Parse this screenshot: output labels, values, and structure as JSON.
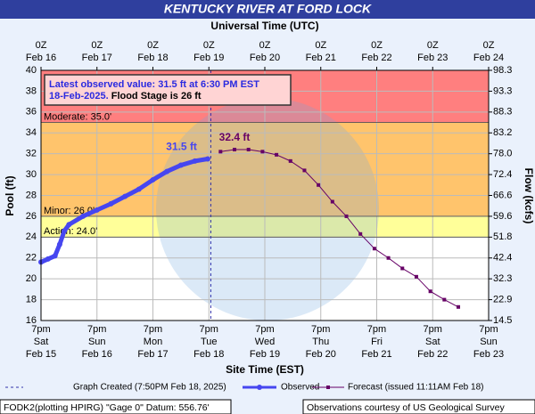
{
  "chart_data": {
    "type": "hydrograph",
    "title": "KENTUCKY RIVER AT FORD LOCK",
    "top_axis_label": "Universal Time (UTC)",
    "xlabel": "Site Time (EST)",
    "ylabel": "Pool (ft)",
    "y2label": "Flow (kcfs)",
    "xlim": [
      "2025-02-15T19:00-05:00",
      "2025-02-23T19:00-05:00"
    ],
    "xticks": [
      {
        "value": "2025-02-15T19:00-05:00",
        "label": [
          "7pm",
          "Sat",
          "Feb 15"
        ]
      },
      {
        "value": "2025-02-16T19:00-05:00",
        "label": [
          "7pm",
          "Sun",
          "Feb 16"
        ]
      },
      {
        "value": "2025-02-17T19:00-05:00",
        "label": [
          "7pm",
          "Mon",
          "Feb 17"
        ]
      },
      {
        "value": "2025-02-18T19:00-05:00",
        "label": [
          "7pm",
          "Tue",
          "Feb 18"
        ]
      },
      {
        "value": "2025-02-19T19:00-05:00",
        "label": [
          "7pm",
          "Wed",
          "Feb 19"
        ]
      },
      {
        "value": "2025-02-20T19:00-05:00",
        "label": [
          "7pm",
          "Thu",
          "Feb 20"
        ]
      },
      {
        "value": "2025-02-21T19:00-05:00",
        "label": [
          "7pm",
          "Fri",
          "Feb 21"
        ]
      },
      {
        "value": "2025-02-22T19:00-05:00",
        "label": [
          "7pm",
          "Sat",
          "Feb 22"
        ]
      },
      {
        "value": "2025-02-23T19:00-05:00",
        "label": [
          "7pm",
          "Sun",
          "Feb 23"
        ]
      }
    ],
    "x2ticks": [
      {
        "value": "2025-02-16T00:00Z",
        "label": [
          "0Z",
          "Feb 16"
        ]
      },
      {
        "value": "2025-02-17T00:00Z",
        "label": [
          "0Z",
          "Feb 17"
        ]
      },
      {
        "value": "2025-02-18T00:00Z",
        "label": [
          "0Z",
          "Feb 18"
        ]
      },
      {
        "value": "2025-02-19T00:00Z",
        "label": [
          "0Z",
          "Feb 19"
        ]
      },
      {
        "value": "2025-02-20T00:00Z",
        "label": [
          "0Z",
          "Feb 20"
        ]
      },
      {
        "value": "2025-02-21T00:00Z",
        "label": [
          "0Z",
          "Feb 21"
        ]
      },
      {
        "value": "2025-02-22T00:00Z",
        "label": [
          "0Z",
          "Feb 22"
        ]
      },
      {
        "value": "2025-02-23T00:00Z",
        "label": [
          "0Z",
          "Feb 23"
        ]
      },
      {
        "value": "2025-02-24T00:00Z",
        "label": [
          "0Z",
          "Feb 24"
        ]
      }
    ],
    "ylim": [
      16,
      40
    ],
    "yticks": [
      16,
      18,
      20,
      22,
      24,
      26,
      28,
      30,
      32,
      34,
      36,
      38,
      40
    ],
    "y2ticks": [
      14.5,
      22.9,
      32.3,
      42.4,
      51.8,
      59.6,
      66.6,
      72.4,
      {
        "value": 78,
        "label": "78.0"
      },
      83.2,
      88.3,
      93.3,
      98.3
    ],
    "grid": true,
    "thresholds": [
      {
        "label": "Action: 24.0'",
        "value": 24,
        "color": "#ffff99"
      },
      {
        "label": "Minor: 26.0'",
        "value": 26,
        "color": "#ffc46c"
      },
      {
        "label": "Moderate: 35.0'",
        "value": 35,
        "color": "#ff7f7f"
      }
    ],
    "created": {
      "name": "Graph Created (7:50PM Feb 18, 2025)",
      "x": "2025-02-18T19:50-05:00",
      "color": "#3333aa"
    },
    "series": [
      {
        "name": "Observed",
        "color": "#4646f0",
        "x": [
          "2025-02-15T19:00-05:00",
          "2025-02-15T22:00-05:00",
          "2025-02-16T01:00-05:00",
          "2025-02-16T03:00-05:00",
          "2025-02-16T05:00-05:00",
          "2025-02-16T07:00-05:00",
          "2025-02-16T13:00-05:00",
          "2025-02-16T19:00-05:00",
          "2025-02-17T01:00-05:00",
          "2025-02-17T07:00-05:00",
          "2025-02-17T13:00-05:00",
          "2025-02-17T19:00-05:00",
          "2025-02-18T01:00-05:00",
          "2025-02-18T07:00-05:00",
          "2025-02-18T13:00-05:00",
          "2025-02-18T18:30-05:00"
        ],
        "values": [
          21.6,
          21.9,
          22.2,
          23.3,
          24.6,
          25.2,
          26.0,
          26.6,
          27.2,
          27.9,
          28.6,
          29.5,
          30.3,
          30.9,
          31.3,
          31.5
        ],
        "value_labels": [
          null,
          null,
          null,
          null,
          null,
          null,
          null,
          null,
          null,
          null,
          null,
          null,
          null,
          null,
          null,
          "31.5 ft"
        ]
      },
      {
        "name": "Forecast (issued 11:11AM Feb 18)",
        "color": "#660066",
        "x": [
          "2025-02-19T00:00-05:00",
          "2025-02-19T06:00-05:00",
          "2025-02-19T12:00-05:00",
          "2025-02-19T18:00-05:00",
          "2025-02-20T00:00-05:00",
          "2025-02-20T06:00-05:00",
          "2025-02-20T12:00-05:00",
          "2025-02-20T18:00-05:00",
          "2025-02-21T00:00-05:00",
          "2025-02-21T06:00-05:00",
          "2025-02-21T12:00-05:00",
          "2025-02-21T18:00-05:00",
          "2025-02-22T00:00-05:00",
          "2025-02-22T06:00-05:00",
          "2025-02-22T12:00-05:00",
          "2025-02-22T18:00-05:00",
          "2025-02-23T00:00-05:00",
          "2025-02-23T06:00-05:00"
        ],
        "values": [
          32.2,
          32.4,
          32.4,
          32.2,
          31.9,
          31.3,
          30.4,
          29.0,
          27.4,
          26.0,
          24.3,
          22.9,
          22.0,
          21.0,
          20.2,
          18.8,
          18.0,
          17.3
        ],
        "value_labels": [
          null,
          "32.4 ft",
          null,
          null,
          null,
          null,
          null,
          null,
          null,
          null,
          null,
          null,
          null,
          null,
          null,
          null,
          null,
          null
        ]
      }
    ],
    "latest_note": [
      "Latest observed value: 31.5 ft at 6:30 PM EST",
      "18-Feb-2025.",
      "Flood Stage is 26 ft"
    ],
    "footer_left": "FODK2(plotting HPIRG) \"Gage 0\" Datum: 556.76'",
    "footer_right": "Observations courtesy of US Geological Survey"
  }
}
